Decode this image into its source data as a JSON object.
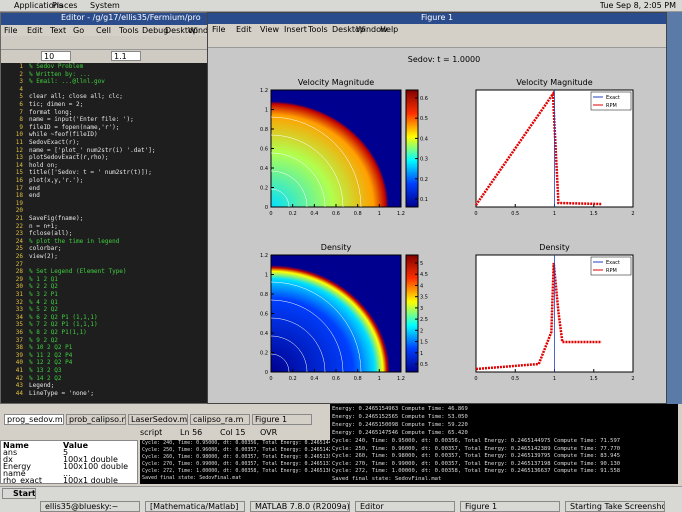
{
  "top_panel": {
    "menus": [
      "Applications",
      "Places",
      "System"
    ],
    "clock": "Tue Sep 8, 2:05 PM"
  },
  "editor": {
    "title": "Editor - /g/g17/ellis35/Fermium/pro",
    "menu": [
      "File",
      "Edit",
      "Text",
      "Go",
      "Cell",
      "Tools",
      "Debug",
      "Desktop",
      "Window"
    ],
    "font_size": "10",
    "zoom": "1.1",
    "code_lines": [
      "% Sedov Problem",
      "% Written by: ...",
      "% Email: ...@llnl.gov",
      "",
      "clear all; close all; clc;",
      "tic; dimen = 2;",
      "format long;",
      "name = input('Enter file: ');",
      "fileID = fopen(name,'r');",
      "while ~feof(fileID)",
      "  SedovExact(r);",
      "  name = ['plot_' num2str(i) '.dat'];",
      "  plotSedovExact(r,rho);",
      "    hold on;",
      "    title(['Sedov: t = ' num2str(t)]);",
      "    plot(x,y,'r.');",
      "  end",
      "end",
      "",
      "",
      "  SaveFig(fname);",
      "  n = n+1;",
      "  fclose(all);",
      "  % plot the time in legend",
      "  colorbar;",
      "  view(2);",
      "",
      "% Set Legend (Element Type)",
      "% 1    2   Q1",
      "% 2    2   Q2",
      "% 3    2   P1",
      "% 4    2   Q1",
      "% 5    2   Q2",
      "% 6    2   Q2 P1 (1,1,1)",
      "% 7    2   Q2 P1 (1,1,1)",
      "% 8    2   Q2 P1(1,1)",
      "% 9    2   Q2",
      "% 10   2   Q2 P1",
      "% 11   2   Q2 P4",
      "% 12   2   Q2 P4",
      "% 13   2   Q3",
      "% 14   2   Q2",
      "Legend;",
      "LineType = 'none';"
    ]
  },
  "figure": {
    "title": "Figure 1",
    "menu": [
      "File",
      "Edit",
      "View",
      "Insert",
      "Tools",
      "Desktop",
      "Window",
      "Help"
    ],
    "suptitle": "Sedov: t = 1.0000",
    "panels": [
      {
        "kind": "heat",
        "title": "Velocity Magnitude",
        "xticks": [
          0,
          0.2,
          0.4,
          0.6,
          0.8,
          1,
          1.2
        ],
        "yticks": [
          0,
          0.2,
          0.4,
          0.6,
          0.8,
          1,
          1.2
        ],
        "cbar_ticks": [
          0.1,
          0.2,
          0.3,
          0.4,
          0.5,
          0.6
        ]
      },
      {
        "kind": "line",
        "title": "Velocity Magnitude",
        "xticks": [
          0,
          0.5,
          1,
          1.5,
          2
        ],
        "legend": [
          "Exact",
          "RPM"
        ]
      },
      {
        "kind": "heat",
        "title": "Density",
        "xticks": [
          0,
          0.2,
          0.4,
          0.6,
          0.8,
          1,
          1.2
        ],
        "yticks": [
          0,
          0.2,
          0.4,
          0.6,
          0.8,
          1,
          1.2
        ],
        "cbar_ticks": [
          0.5,
          1,
          1.5,
          2,
          2.5,
          3,
          3.5,
          4,
          4.5,
          5
        ]
      },
      {
        "kind": "line",
        "title": "Density",
        "xticks": [
          0,
          0.5,
          1,
          1.5,
          2
        ],
        "legend": [
          "Exact",
          "RPM"
        ]
      }
    ]
  },
  "tabs": [
    "prog_sedov.m",
    "prob_calipso.m",
    "LaserSedov.m",
    "calipso_ra.m",
    "Figure 1"
  ],
  "status": {
    "script": "script",
    "ln": "Ln 56",
    "col": "Col 15",
    "ovr": "OVR"
  },
  "workspace": [
    [
      "Name",
      "Value"
    ],
    [
      "ans",
      "5"
    ],
    [
      "dx",
      "100x1 double"
    ],
    [
      "Energy",
      "100x100 double"
    ],
    [
      "name",
      "..."
    ],
    [
      "rho_exact",
      "100x1 double"
    ]
  ],
  "command_lines": [
    "Energy: 0.2465154963   Compute Time: 46.869",
    "Energy: 0.2465152565   Compute Time: 53.050",
    "Energy: 0.2465150098   Compute Time: 59.220",
    "Energy: 0.2465147546   Compute Time: 65.420",
    "Cycle: 240, Time: 0.95000, dt: 0.00356, Total Energy: 0.2465144975  Compute Time: 71.597",
    "Cycle: 250, Time: 0.96000, dt: 0.00357, Total Energy: 0.2465142389  Compute Time: 77.770",
    "Cycle: 260, Time: 0.98000, dt: 0.00357, Total Energy: 0.2465139795  Compute Time: 83.945",
    "Cycle: 270, Time: 0.99000, dt: 0.00357, Total Energy: 0.2465137198  Compute Time: 90.130",
    "Cycle: 272, Time: 1.00000, dt: 0.00358, Total Energy: 0.2465136637  Compute Time: 91.558",
    "Saved final state: SedovFinal.mat"
  ],
  "taskbar": {
    "start": "Start",
    "items": [
      "ellis35@bluesky:~",
      "[Mathematica/Matlab]",
      "MATLAB 7.8.0 (R2009a)",
      "Editor",
      "Figure 1",
      "Starting Take Screenshot"
    ]
  }
}
